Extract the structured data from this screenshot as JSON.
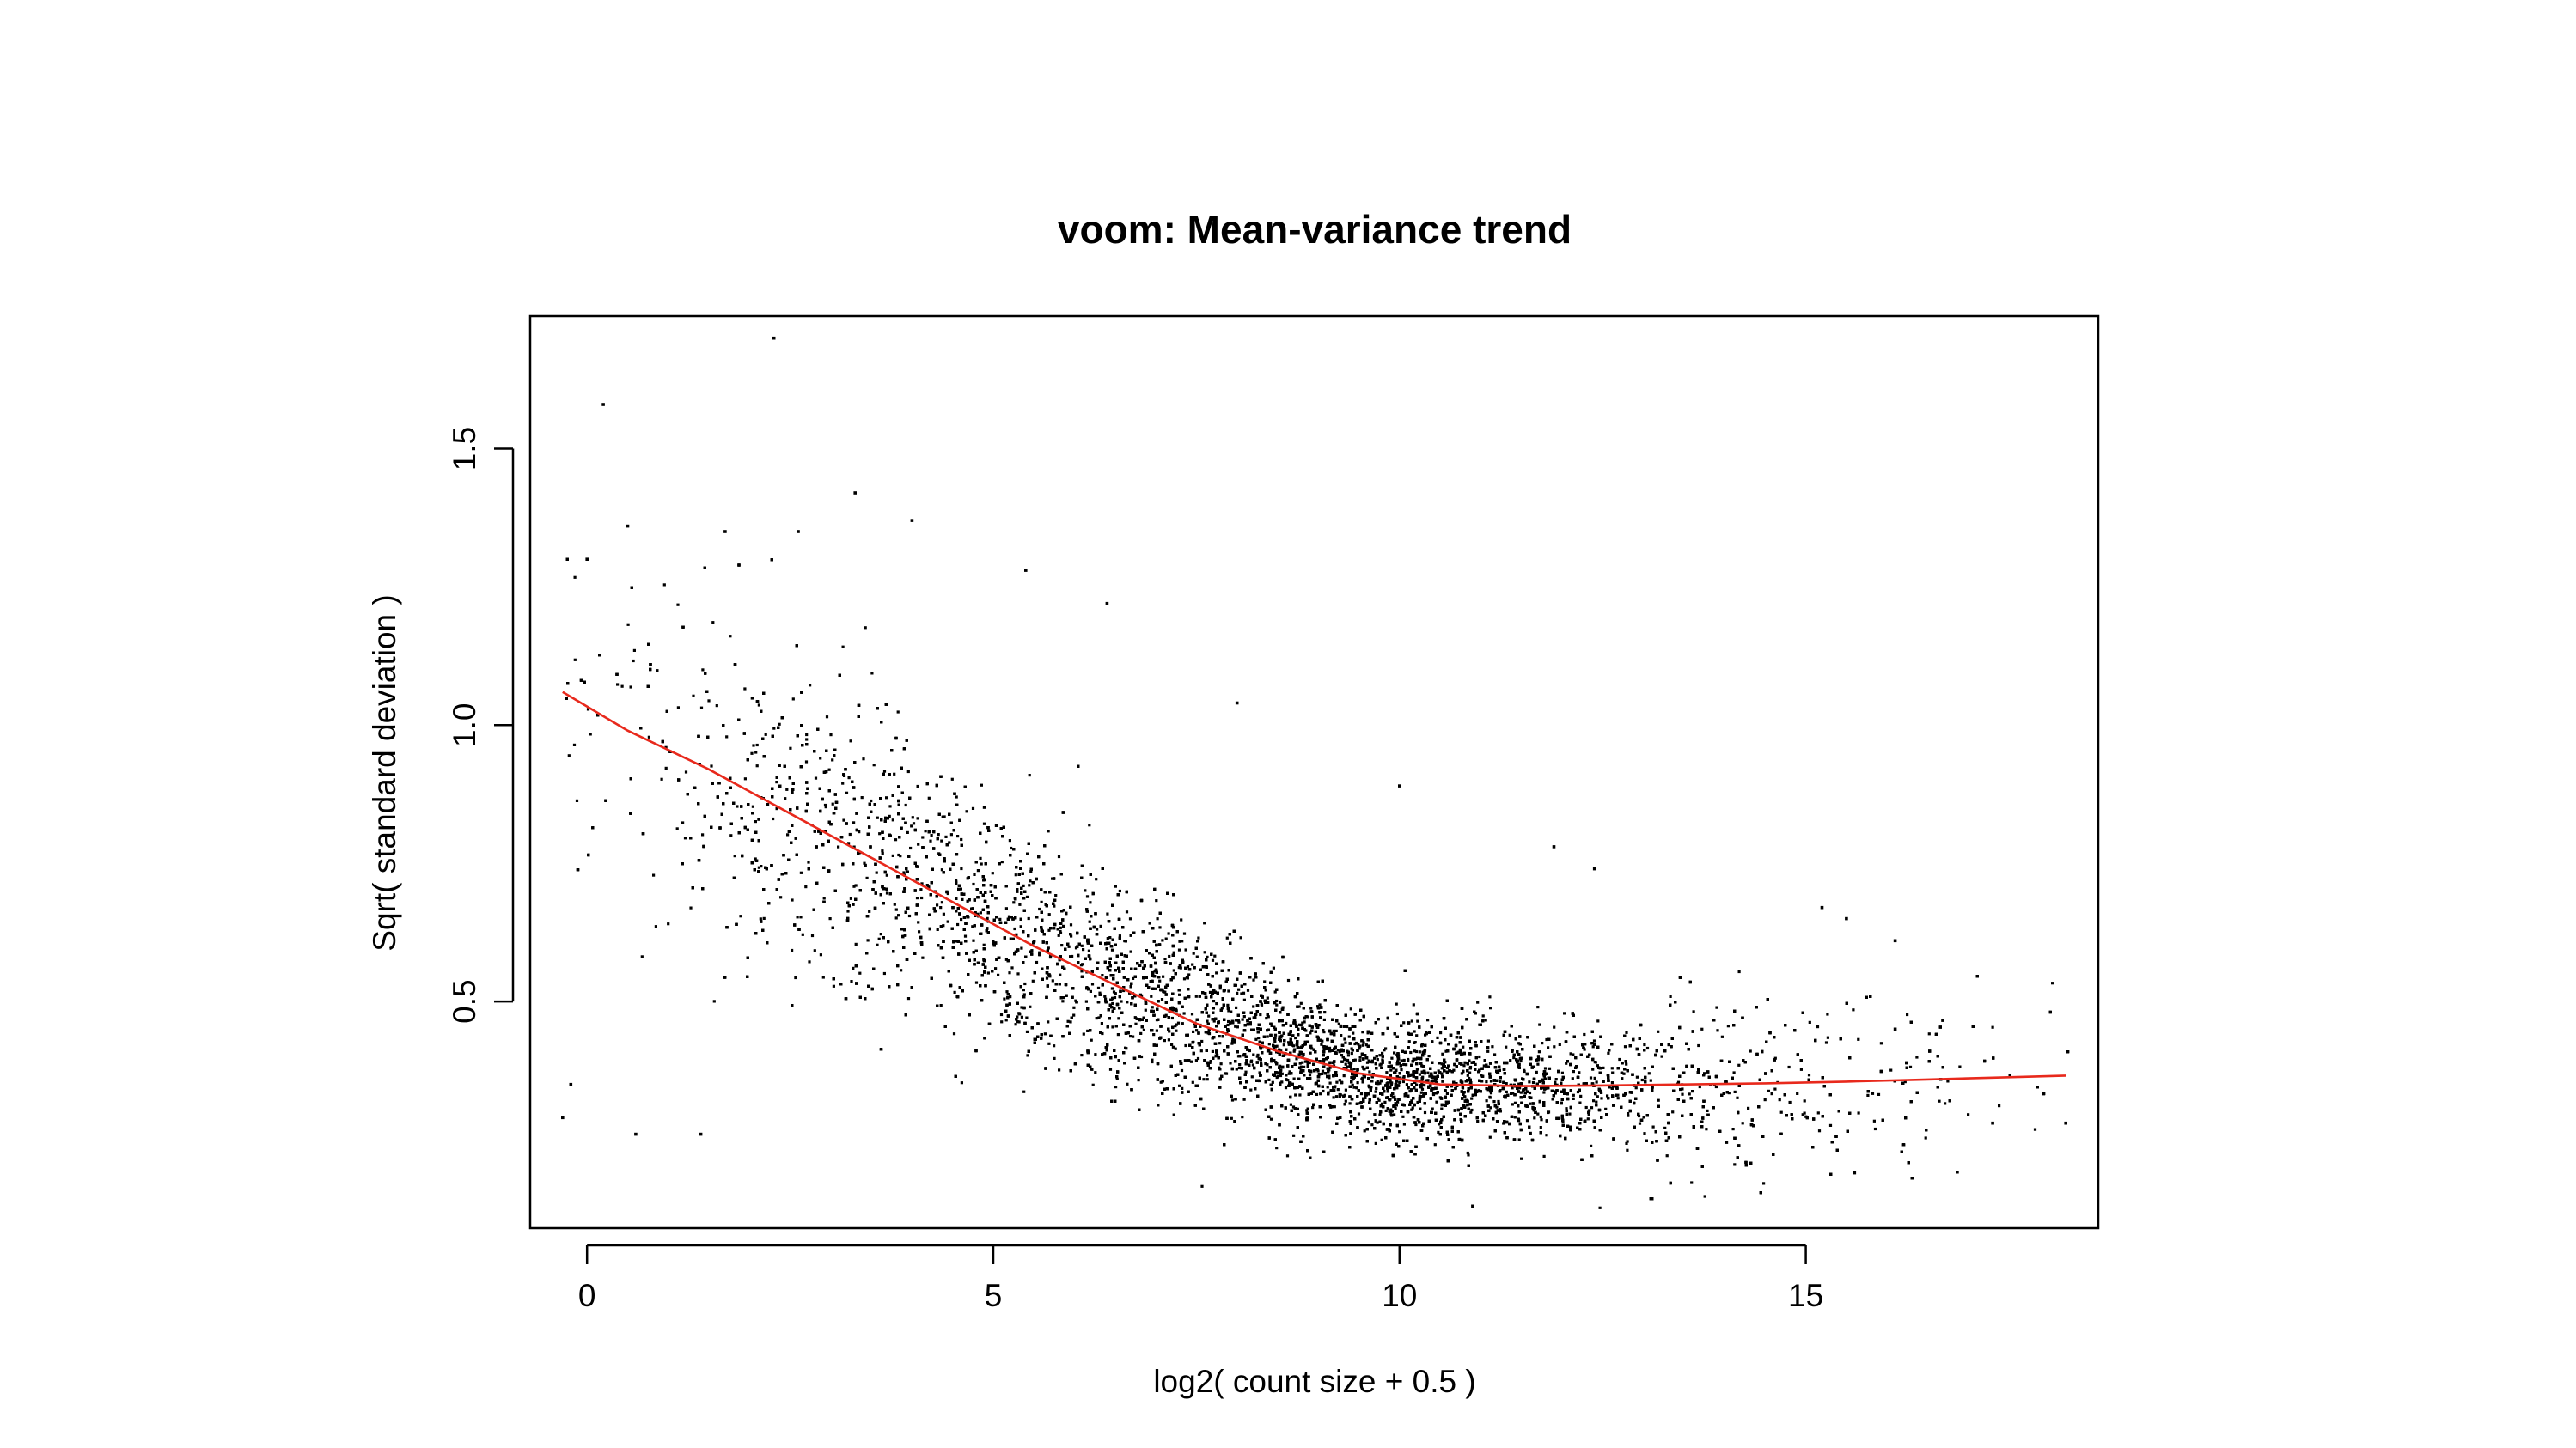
{
  "chart_data": {
    "type": "scatter",
    "title": "voom: Mean-variance trend",
    "xlabel": "log2( count size + 0.5 )",
    "ylabel": "Sqrt( standard deviation )",
    "xlim": [
      -0.7,
      18.6
    ],
    "ylim": [
      0.09,
      1.74
    ],
    "x_ticks": [
      "0",
      "5",
      "10",
      "15"
    ],
    "y_ticks": [
      "0.5",
      "1.0",
      "1.5"
    ],
    "grid": false,
    "legend": "none",
    "point_color": "#000000",
    "series": [
      {
        "kind": "scatter",
        "approx_points": 16000,
        "points_note": "dense cloud of per-gene values; representative outliers listed",
        "outliers": [
          {
            "x": 2.3,
            "y": 1.7
          },
          {
            "x": 0.2,
            "y": 1.58
          },
          {
            "x": 3.3,
            "y": 1.42
          },
          {
            "x": 4.0,
            "y": 1.37
          },
          {
            "x": 0.5,
            "y": 1.36
          },
          {
            "x": 1.7,
            "y": 1.35
          },
          {
            "x": 2.6,
            "y": 1.35
          },
          {
            "x": 5.4,
            "y": 1.28
          },
          {
            "x": 6.4,
            "y": 1.22
          },
          {
            "x": 0.0,
            "y": 1.3
          },
          {
            "x": 8.0,
            "y": 1.04
          },
          {
            "x": 10.0,
            "y": 0.89
          },
          {
            "x": 11.9,
            "y": 0.78
          },
          {
            "x": 12.4,
            "y": 0.74
          },
          {
            "x": 15.2,
            "y": 0.67
          },
          {
            "x": 15.5,
            "y": 0.65
          },
          {
            "x": 16.1,
            "y": 0.61
          },
          {
            "x": 16.1,
            "y": 0.45
          },
          {
            "x": 17.3,
            "y": 0.28
          },
          {
            "x": 18.2,
            "y": 0.28
          },
          {
            "x": 15.6,
            "y": 0.19
          },
          {
            "x": -0.3,
            "y": 0.29
          },
          {
            "x": 0.6,
            "y": 0.26
          },
          {
            "x": 1.4,
            "y": 0.26
          },
          {
            "x": -0.2,
            "y": 0.35
          },
          {
            "x": 10.9,
            "y": 0.13
          }
        ]
      },
      {
        "kind": "line",
        "color": "#e8291c",
        "x": [
          -0.3,
          0.5,
          1.5,
          2.5,
          3.5,
          4.5,
          5.5,
          6.5,
          7.5,
          8.5,
          9.5,
          10.5,
          11.5,
          12.5,
          13.5,
          14.5,
          15.5,
          16.5,
          17.5,
          18.2
        ],
        "y": [
          1.06,
          0.99,
          0.92,
          0.84,
          0.76,
          0.68,
          0.6,
          0.53,
          0.46,
          0.41,
          0.37,
          0.35,
          0.347,
          0.348,
          0.35,
          0.352,
          0.355,
          0.359,
          0.363,
          0.366
        ]
      }
    ]
  }
}
